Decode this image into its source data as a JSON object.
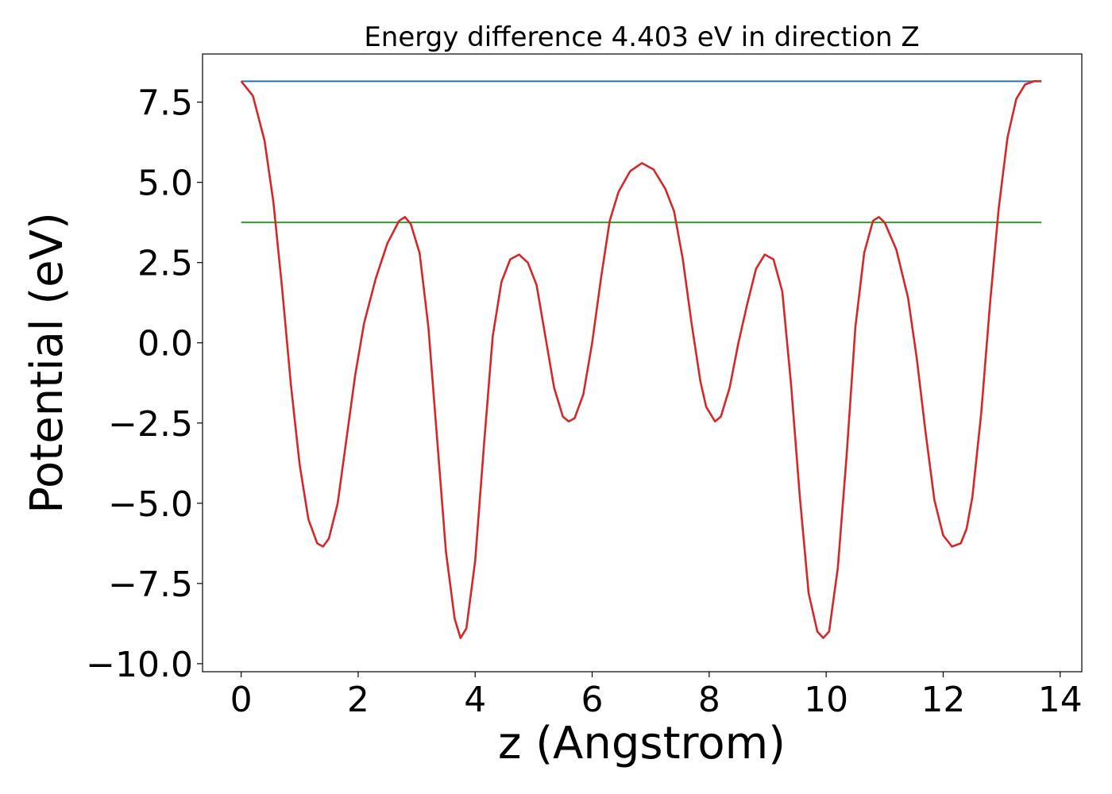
{
  "chart_data": {
    "type": "line",
    "title": "Energy difference 4.403 eV in direction Z",
    "xlabel": "z (Angstrom)",
    "ylabel": "Potential (eV)",
    "xlim": [
      -0.66,
      14.37
    ],
    "ylim": [
      -10.25,
      9.0
    ],
    "xticks": [
      0,
      2,
      4,
      6,
      8,
      10,
      12,
      14
    ],
    "xtick_labels": [
      "0",
      "2",
      "4",
      "6",
      "8",
      "10",
      "12",
      "14"
    ],
    "yticks": [
      -10.0,
      -7.5,
      -5.0,
      -2.5,
      0.0,
      2.5,
      5.0,
      7.5
    ],
    "ytick_labels": [
      "−10.0",
      "−7.5",
      "−5.0",
      "−2.5",
      "0.0",
      "2.5",
      "5.0",
      "7.5"
    ],
    "grid": false,
    "legend": "none",
    "series": [
      {
        "color": "#d62728",
        "x": [
          0.0,
          0.2,
          0.4,
          0.55,
          0.7,
          0.85,
          1.0,
          1.15,
          1.3,
          1.4,
          1.5,
          1.65,
          1.8,
          1.95,
          2.1,
          2.3,
          2.5,
          2.7,
          2.8,
          2.9,
          3.05,
          3.2,
          3.35,
          3.5,
          3.65,
          3.75,
          3.85,
          4.0,
          4.15,
          4.3,
          4.45,
          4.6,
          4.75,
          4.9,
          5.05,
          5.2,
          5.35,
          5.5,
          5.6,
          5.7,
          5.85,
          6.0,
          6.15,
          6.3,
          6.45,
          6.65,
          6.85,
          7.05,
          7.25,
          7.4,
          7.55,
          7.7,
          7.85,
          7.95,
          8.1,
          8.2,
          8.35,
          8.5,
          8.65,
          8.8,
          8.95,
          9.1,
          9.25,
          9.4,
          9.55,
          9.7,
          9.85,
          9.95,
          10.05,
          10.2,
          10.35,
          10.5,
          10.65,
          10.8,
          10.9,
          11.0,
          11.2,
          11.4,
          11.55,
          11.7,
          11.85,
          12.0,
          12.15,
          12.3,
          12.4,
          12.5,
          12.65,
          12.8,
          12.95,
          13.1,
          13.25,
          13.4,
          13.55,
          13.68
        ],
        "values": [
          8.15,
          7.7,
          6.3,
          4.4,
          1.7,
          -1.3,
          -3.8,
          -5.5,
          -6.25,
          -6.35,
          -6.1,
          -5.0,
          -3.0,
          -1.0,
          0.6,
          2.0,
          3.1,
          3.8,
          3.92,
          3.7,
          2.8,
          0.5,
          -3.0,
          -6.5,
          -8.6,
          -9.2,
          -8.9,
          -6.8,
          -3.2,
          0.2,
          1.9,
          2.6,
          2.75,
          2.5,
          1.8,
          0.2,
          -1.4,
          -2.3,
          -2.45,
          -2.35,
          -1.6,
          0.0,
          2.0,
          3.8,
          4.7,
          5.35,
          5.6,
          5.4,
          4.8,
          4.1,
          2.6,
          0.6,
          -1.2,
          -2.0,
          -2.45,
          -2.3,
          -1.4,
          0.0,
          1.2,
          2.3,
          2.75,
          2.6,
          1.6,
          -1.3,
          -4.8,
          -7.8,
          -9.0,
          -9.2,
          -9.0,
          -7.0,
          -3.5,
          0.5,
          2.8,
          3.8,
          3.92,
          3.75,
          2.9,
          1.4,
          -0.5,
          -2.8,
          -4.9,
          -6.0,
          -6.35,
          -6.25,
          -5.8,
          -4.8,
          -2.2,
          1.2,
          4.2,
          6.4,
          7.6,
          8.05,
          8.15,
          8.15
        ]
      },
      {
        "color": "#1f77b4",
        "x": [
          0.0,
          13.68
        ],
        "values": [
          8.15,
          8.15
        ]
      },
      {
        "color": "#2ca02c",
        "x": [
          0.0,
          13.68
        ],
        "values": [
          3.75,
          3.75
        ]
      }
    ]
  }
}
